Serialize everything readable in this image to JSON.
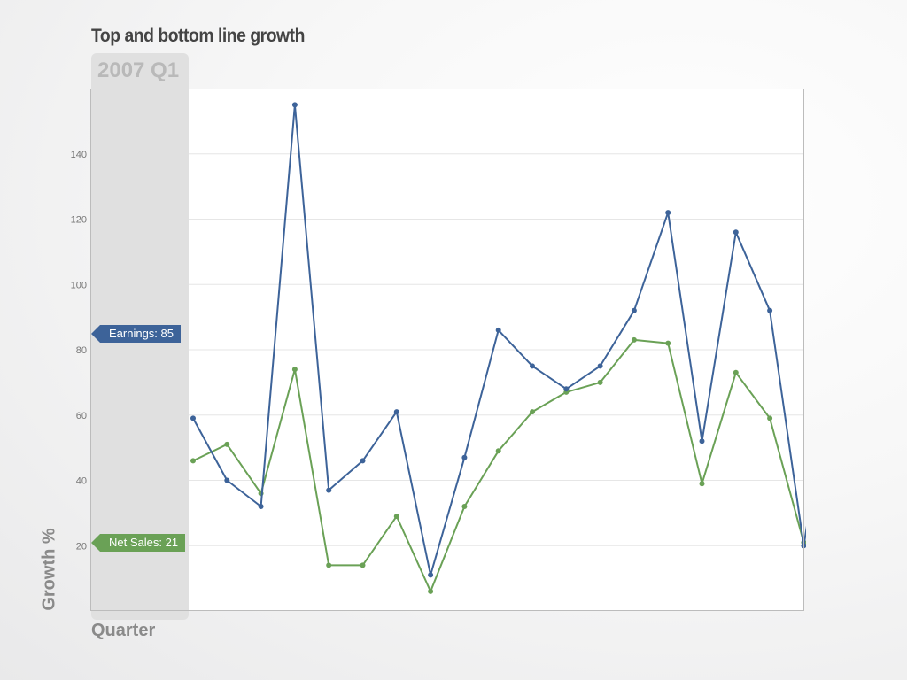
{
  "header": {
    "title": "Top and bottom line growth"
  },
  "period": {
    "label": "2007 Q1"
  },
  "tags": {
    "earnings_text": "Earnings: 85",
    "net_sales_text": "Net Sales: 21"
  },
  "chart_data": {
    "type": "line",
    "title": "Top and bottom line growth",
    "xlabel": "Quarter",
    "ylabel": "Growth %",
    "ylim": [
      0,
      160
    ],
    "yticks": [
      20,
      40,
      60,
      80,
      100,
      120,
      140
    ],
    "grid": true,
    "x": [
      1,
      2,
      3,
      4,
      5,
      6,
      7,
      8,
      9,
      10,
      11,
      12,
      13,
      14,
      15,
      16,
      17,
      18,
      19,
      20
    ],
    "series": [
      {
        "name": "Earnings",
        "color": "#3d6399",
        "values": [
          59,
          40,
          32,
          155,
          37,
          46,
          61,
          11,
          47,
          86,
          75,
          68,
          75,
          92,
          122,
          52,
          116,
          92,
          20,
          85
        ]
      },
      {
        "name": "Net Sales",
        "color": "#6aa156",
        "values": [
          46,
          51,
          36,
          74,
          14,
          14,
          29,
          6,
          32,
          49,
          61,
          67,
          70,
          83,
          82,
          39,
          73,
          59,
          21,
          21
        ]
      }
    ]
  }
}
